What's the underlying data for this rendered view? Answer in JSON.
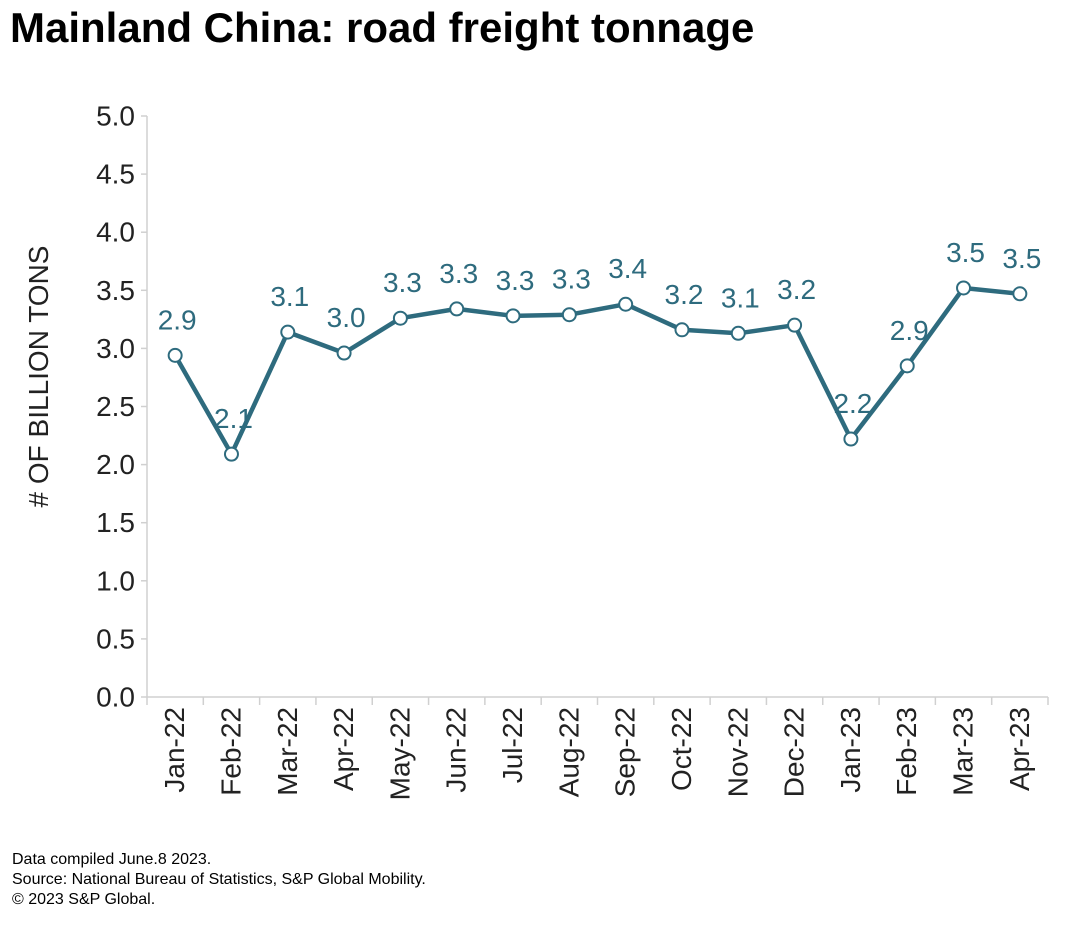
{
  "chart_data": {
    "type": "line",
    "title": "Mainland China: road freight tonnage",
    "xlabel": "",
    "ylabel": "# OF BILLION TONS",
    "ylim": [
      0,
      5
    ],
    "ytick_step": 0.5,
    "ytick_labels": [
      "0.0",
      "0.5",
      "1.0",
      "1.5",
      "2.0",
      "2.5",
      "3.0",
      "3.5",
      "4.0",
      "4.5",
      "5.0"
    ],
    "grid": false,
    "categories": [
      "Jan-22",
      "Feb-22",
      "Mar-22",
      "Apr-22",
      "May-22",
      "Jun-22",
      "Jul-22",
      "Aug-22",
      "Sep-22",
      "Oct-22",
      "Nov-22",
      "Dec-22",
      "Jan-23",
      "Feb-23",
      "Mar-23",
      "Apr-23"
    ],
    "series": [
      {
        "name": "Road freight tonnage",
        "color": "#2e6b7e",
        "values": [
          2.94,
          2.09,
          3.14,
          2.96,
          3.26,
          3.34,
          3.28,
          3.29,
          3.38,
          3.16,
          3.13,
          3.2,
          2.22,
          2.85,
          3.52,
          3.47
        ],
        "data_labels": [
          "2.9",
          "2.1",
          "3.1",
          "3.0",
          "3.3",
          "3.3",
          "3.3",
          "3.3",
          "3.4",
          "3.2",
          "3.1",
          "3.2",
          "2.2",
          "2.9",
          "3.5",
          "3.5"
        ]
      }
    ]
  },
  "notes": {
    "compiled": "Data compiled June.8 2023.",
    "source": "Source: National Bureau of Statistics, S&P Global Mobility.",
    "copyright": "© 2023 S&P Global."
  }
}
